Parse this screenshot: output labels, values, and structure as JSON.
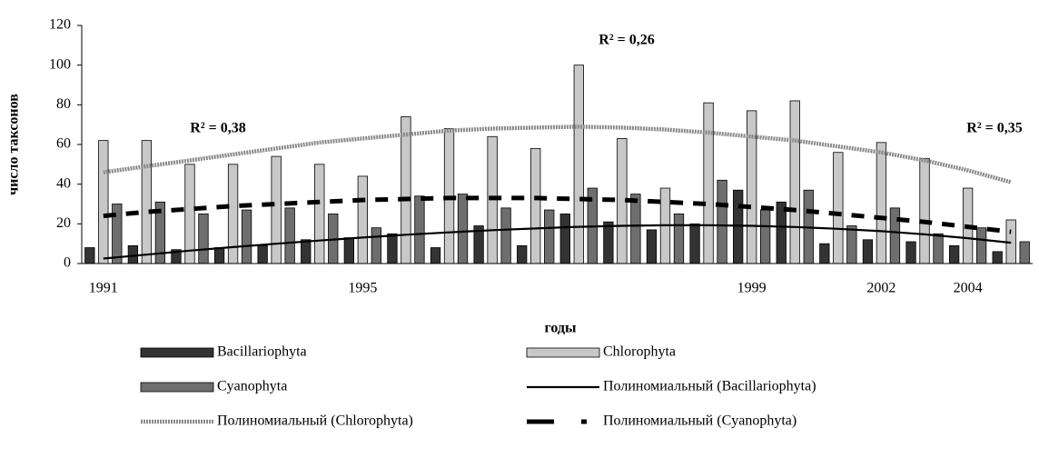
{
  "chart_data": {
    "type": "bar",
    "x_label": "годы",
    "y_label": "число таксонов",
    "categories": [
      "1991",
      null,
      null,
      null,
      null,
      null,
      "1995",
      null,
      null,
      null,
      null,
      null,
      null,
      null,
      null,
      "1999",
      null,
      null,
      "2002",
      null,
      "2004",
      null
    ],
    "series": [
      {
        "name": "Bacillariophyta",
        "type": "bar",
        "color": "#333333",
        "values": [
          8,
          9,
          7,
          8,
          9,
          12,
          13,
          15,
          8,
          19,
          9,
          25,
          21,
          17,
          20,
          37,
          31,
          10,
          12,
          11,
          9,
          6
        ]
      },
      {
        "name": "Chlorophyta",
        "type": "bar",
        "color": "#c8c8c8",
        "values": [
          62,
          62,
          50,
          50,
          54,
          50,
          44,
          74,
          68,
          64,
          58,
          100,
          63,
          38,
          81,
          77,
          82,
          56,
          61,
          53,
          38,
          22
        ]
      },
      {
        "name": "Cyanophyta",
        "type": "bar",
        "color": "#6e6e6e",
        "values": [
          30,
          31,
          25,
          27,
          28,
          25,
          18,
          34,
          35,
          28,
          27,
          38,
          35,
          25,
          42,
          27,
          37,
          19,
          28,
          15,
          18,
          11
        ]
      },
      {
        "name": "Полиномиальный (Bacillariophyta)",
        "type": "line",
        "color": "#000000",
        "line_style": "solid",
        "values": [
          2.5,
          4.5,
          6.5,
          8.3,
          10,
          11.6,
          13.1,
          14.5,
          15.7,
          16.8,
          17.7,
          18.5,
          19,
          19.3,
          19.3,
          19,
          18.4,
          17.5,
          16.3,
          14.7,
          12.8,
          10.5
        ]
      },
      {
        "name": "Полиномиальный (Chlorophyta)",
        "type": "line",
        "color": "#8a8a8a",
        "line_style": "dotted",
        "values": [
          46,
          49,
          52,
          55,
          58,
          61,
          63,
          65,
          67,
          68,
          68.5,
          69,
          68.5,
          67.5,
          66,
          64,
          62,
          59,
          56,
          52,
          47,
          41
        ]
      },
      {
        "name": "Полиномиальный (Cyanophyta)",
        "type": "line",
        "color": "#000000",
        "line_style": "dashed",
        "values": [
          24,
          26,
          27.5,
          29,
          30,
          31,
          32,
          32.5,
          33,
          33,
          33,
          32.5,
          32,
          31,
          30,
          28.5,
          27,
          25,
          23,
          21,
          18.5,
          16
        ]
      }
    ],
    "annotations": [
      "R² = 0,38",
      "R² = 0,26",
      "R² = 0,35"
    ],
    "ylim": [
      0,
      120
    ],
    "yticks": [
      0,
      20,
      40,
      60,
      80,
      100,
      120
    ],
    "grid": false
  }
}
